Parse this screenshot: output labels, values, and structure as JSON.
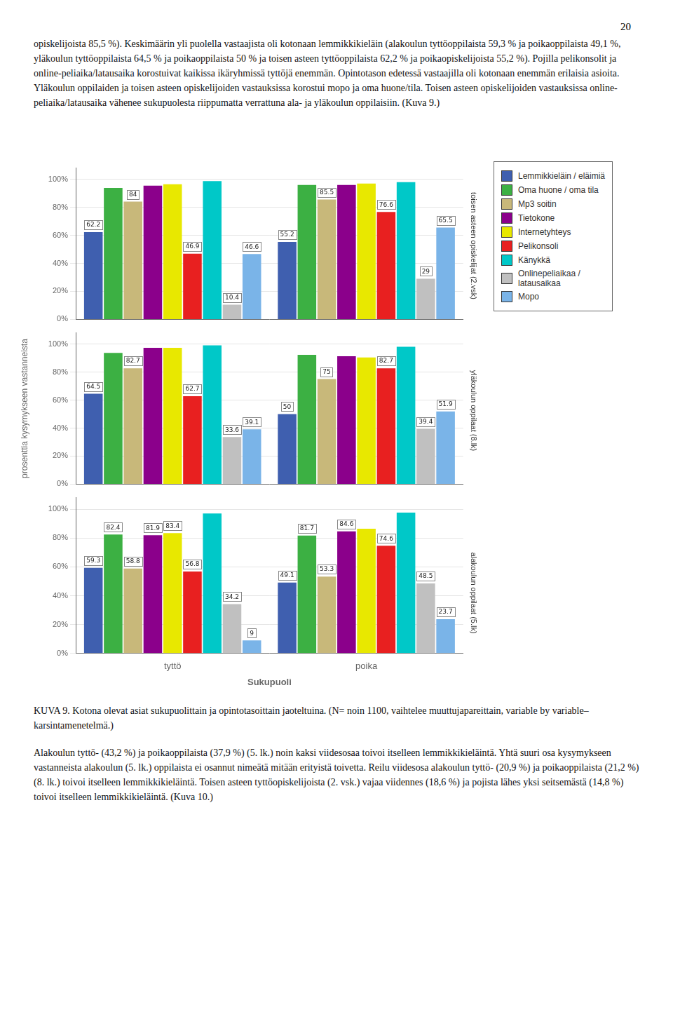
{
  "page_number": "20",
  "text_above": "opiskelijoista 85,5 %). Keskimäärin yli puolella vastaajista oli kotonaan lemmikkikieläin (alakoulun tyttöoppilaista 59,3 % ja poikaoppilaista 49,1 %, yläkoulun tyttöoppilaista 64,5 % ja poikaoppilaista 50 % ja toisen asteen tyttöoppilaista 62,2 % ja poikaopiskelijoista 55,2 %). Pojilla pelikonsolit ja online-peliaika/latausaika korostuivat kaikissa ikäryhmissä tyttöjä enemmän. Opintotason edetessä vastaajilla oli kotonaan enemmän erilaisia asioita. Yläkoulun oppilaiden ja toisen asteen opiskelijoiden vastauksissa korostui mopo ja oma huone/tila. Toisen asteen opiskelijoiden vastauksissa online-peliaika/latausaika vähenee sukupuolesta riippumatta verrattuna ala- ja yläkoulun oppilaisiin. (Kuva 9.)",
  "caption": "KUVA 9. Kotona olevat asiat sukupuolittain ja opintotasoittain jaoteltuina. (N= noin 1100, vaihtelee muuttujapareittain, variable by variable–karsintamenetelmä.)",
  "text_below": "Alakoulun tyttö- (43,2 %) ja poikaoppilaista (37,9 %) (5. lk.) noin kaksi viidesosaa toivoi itselleen lemmikkikieläintä. Yhtä suuri osa kysymykseen vastanneista alakoulun (5. lk.) oppilaista ei osannut nimeätä mitään erityistä toivetta. Reilu viidesosa alakoulun tyttö- (20,9 %) ja poikaoppilaista (21,2 %) (8. lk.) toivoi itselleen lemmikkikieläintä. Toisen asteen tyttöopiskelijoista (2. vsk.) vajaa viidennes (18,6 %) ja pojista lähes yksi seitsemästä (14,8 %) toivoi itselleen lemmikkikieläintä. (Kuva 10.)",
  "chart_data": [
    {
      "type": "bar",
      "title": "toisen asteen opiskelijat (2.vsk)",
      "categories": [
        "tyttö",
        "poika"
      ],
      "tick_labels": "y",
      "legend": "right",
      "grid": true,
      "ylim": [
        0,
        108
      ],
      "yticks": [
        {
          "value": 0,
          "label": "0%"
        },
        {
          "value": 20,
          "label": "20%"
        },
        {
          "value": 40,
          "label": "40%"
        },
        {
          "value": 60,
          "label": "60%"
        },
        {
          "value": 80,
          "label": "80%"
        },
        {
          "value": 100,
          "label": "100%"
        }
      ],
      "data_labels": true,
      "series": [
        {
          "name": "Lemmikkieläin / eläimiä",
          "color": "#3f5faf",
          "values": [
            62.2,
            55.2
          ],
          "value_labels": [
            "62.2",
            "55.2"
          ]
        },
        {
          "name": "Oma huone / oma tila",
          "color": "#3cb043",
          "values": [
            93.8,
            95.9
          ],
          "value_labels": [
            null,
            null
          ]
        },
        {
          "name": "Mp3 soitin",
          "color": "#c8b87a",
          "values": [
            84.0,
            85.5
          ],
          "value_labels": [
            "84",
            "85.5"
          ]
        },
        {
          "name": "Tietokone",
          "color": "#8b008b",
          "values": [
            95.4,
            95.9
          ],
          "value_labels": [
            null,
            null
          ]
        },
        {
          "name": "Internetyhteys",
          "color": "#e8e800",
          "values": [
            96.4,
            96.9
          ],
          "value_labels": [
            null,
            null
          ]
        },
        {
          "name": "Pelikonsoli",
          "color": "#e82020",
          "values": [
            46.9,
            76.6
          ],
          "value_labels": [
            "46.9",
            "76.6"
          ]
        },
        {
          "name": "Känykkä",
          "color": "#00c8c8",
          "values": [
            98.7,
            97.9
          ],
          "value_labels": [
            null,
            null
          ]
        },
        {
          "name": "Onlinepeliaikaa /\nlatausaikaa",
          "color": "#c0c0c0",
          "values": [
            10.4,
            29.0
          ],
          "value_labels": [
            "10.4",
            "29"
          ]
        },
        {
          "name": "Mopo",
          "color": "#7ab4e8",
          "values": [
            46.6,
            65.5
          ],
          "value_labels": [
            "46.6",
            "65.5"
          ]
        }
      ]
    },
    {
      "type": "bar",
      "title": "yläkoulun oppilaat (8.lk)",
      "categories": [
        "tyttö",
        "poika"
      ],
      "tick_labels": "y",
      "ylabel": "prosenttia kysymykseen vastanneista",
      "grid": true,
      "ylim": [
        0,
        108
      ],
      "yticks": [
        {
          "value": 0,
          "label": "0%"
        },
        {
          "value": 20,
          "label": "20%"
        },
        {
          "value": 40,
          "label": "40%"
        },
        {
          "value": 60,
          "label": "60%"
        },
        {
          "value": 80,
          "label": "80%"
        },
        {
          "value": 100,
          "label": "100%"
        }
      ],
      "data_labels": true,
      "series": [
        {
          "name": "Lemmikkieläin / eläimiä",
          "color": "#3f5faf",
          "values": [
            64.5,
            50.0
          ],
          "value_labels": [
            "64.5",
            "50"
          ]
        },
        {
          "name": "Oma huone / oma tila",
          "color": "#3cb043",
          "values": [
            93.6,
            92.3
          ],
          "value_labels": [
            null,
            null
          ]
        },
        {
          "name": "Mp3 soitin",
          "color": "#c8b87a",
          "values": [
            82.7,
            75.0
          ],
          "value_labels": [
            "82.7",
            "75"
          ]
        },
        {
          "name": "Tietokone",
          "color": "#8b008b",
          "values": [
            97.3,
            91.3
          ],
          "value_labels": [
            null,
            null
          ]
        },
        {
          "name": "Internetyhteys",
          "color": "#e8e800",
          "values": [
            97.3,
            90.4
          ],
          "value_labels": [
            null,
            null
          ]
        },
        {
          "name": "Pelikonsoli",
          "color": "#e82020",
          "values": [
            62.7,
            82.7
          ],
          "value_labels": [
            "62.7",
            "82.7"
          ]
        },
        {
          "name": "Känykkä",
          "color": "#00c8c8",
          "values": [
            99.1,
            98.1
          ],
          "value_labels": [
            null,
            null
          ]
        },
        {
          "name": "Onlinepeliaikaa /\nlatausaikaa",
          "color": "#c0c0c0",
          "values": [
            33.6,
            39.4
          ],
          "value_labels": [
            "33.6",
            "39.4"
          ]
        },
        {
          "name": "Mopo",
          "color": "#7ab4e8",
          "values": [
            39.1,
            51.9
          ],
          "value_labels": [
            "39.1",
            "51.9"
          ]
        }
      ]
    },
    {
      "type": "bar",
      "title": "alakoulun oppilaat (5.lk)",
      "categories": [
        "tyttö",
        "poika"
      ],
      "xlabel": "Sukupuoli",
      "grid": true,
      "ylim": [
        0,
        108
      ],
      "yticks": [
        {
          "value": 0,
          "label": "0%"
        },
        {
          "value": 20,
          "label": "20%"
        },
        {
          "value": 40,
          "label": "40%"
        },
        {
          "value": 60,
          "label": "60%"
        },
        {
          "value": 80,
          "label": "80%"
        },
        {
          "value": 100,
          "label": "100%"
        }
      ],
      "data_labels": true,
      "series": [
        {
          "name": "Lemmikkieläin / eläimiä",
          "color": "#3f5faf",
          "values": [
            59.3,
            49.1
          ],
          "value_labels": [
            "59.3",
            "49.1"
          ]
        },
        {
          "name": "Oma huone / oma tila",
          "color": "#3cb043",
          "values": [
            82.4,
            81.7
          ],
          "value_labels": [
            "82.4",
            "81.7"
          ]
        },
        {
          "name": "Mp3 soitin",
          "color": "#c8b87a",
          "values": [
            58.8,
            53.3
          ],
          "value_labels": [
            "58.8",
            "53.3"
          ]
        },
        {
          "name": "Tietokone",
          "color": "#8b008b",
          "values": [
            81.9,
            84.6
          ],
          "value_labels": [
            "81.9",
            "84.6"
          ]
        },
        {
          "name": "Internetyhteys",
          "color": "#e8e800",
          "values": [
            83.4,
            86.4
          ],
          "value_labels": [
            "83.4",
            null
          ]
        },
        {
          "name": "Pelikonsoli",
          "color": "#e82020",
          "values": [
            56.8,
            74.6
          ],
          "value_labels": [
            "56.8",
            "74.6"
          ]
        },
        {
          "name": "Känykkä",
          "color": "#00c8c8",
          "values": [
            97.0,
            97.6
          ],
          "value_labels": [
            null,
            null
          ]
        },
        {
          "name": "Onlinepeliaikaa /\nlatausaikaa",
          "color": "#c0c0c0",
          "values": [
            34.2,
            48.5
          ],
          "value_labels": [
            "34.2",
            "48.5"
          ]
        },
        {
          "name": "Mopo",
          "color": "#7ab4e8",
          "values": [
            9.0,
            23.7
          ],
          "value_labels": [
            "9",
            "23.7"
          ]
        }
      ]
    }
  ]
}
